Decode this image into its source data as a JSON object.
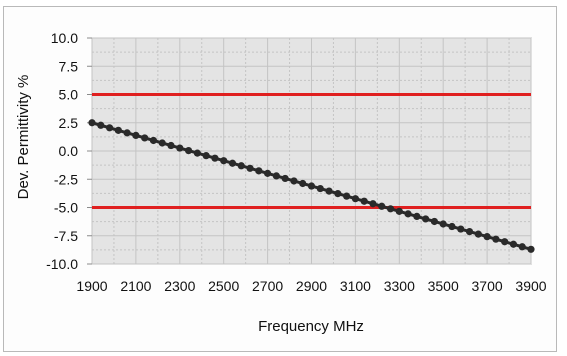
{
  "chart_data": {
    "type": "line",
    "xlabel": "Frequency MHz",
    "ylabel": "Dev. Permittivity %",
    "xlim": [
      1900,
      3900
    ],
    "ylim": [
      -10,
      10
    ],
    "x_ticks": [
      "1900",
      "2100",
      "2300",
      "2500",
      "2700",
      "2900",
      "3100",
      "3300",
      "3500",
      "3700",
      "3900"
    ],
    "y_ticks": [
      "10.0",
      "7.5",
      "5.0",
      "2.5",
      "0.0",
      "-2.5",
      "-5.0",
      "-7.5",
      "-10.0"
    ],
    "grid": true,
    "limit_lines": [
      5.0,
      -5.0
    ],
    "colors": {
      "limit": "#e02020",
      "series": "#2a2a2a",
      "plot_bg": "#e4e4e4",
      "grid": "#c4c4c4"
    },
    "series": [
      {
        "x": [
          1900,
          3900
        ],
        "y": [
          2.5,
          -8.7
        ]
      }
    ]
  }
}
